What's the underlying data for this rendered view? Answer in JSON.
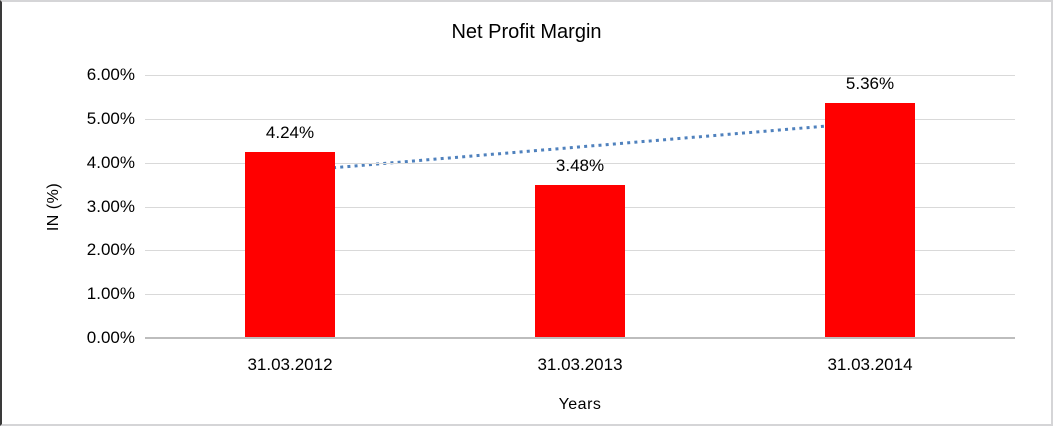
{
  "chart": {
    "title": "Net Profit Margin",
    "y_axis_title": "IN (%)",
    "x_axis_title": "Years"
  },
  "chart_data": {
    "type": "bar",
    "title": "Net Profit Margin",
    "xlabel": "Years",
    "ylabel": "IN (%)",
    "categories": [
      "31.03.2012",
      "31.03.2013",
      "31.03.2014"
    ],
    "values": [
      4.24,
      3.48,
      5.36
    ],
    "value_labels": [
      "4.24%",
      "3.48%",
      "5.36%"
    ],
    "y_ticks": [
      "0.00%",
      "1.00%",
      "2.00%",
      "3.00%",
      "4.00%",
      "5.00%",
      "6.00%"
    ],
    "ylim": [
      0,
      6
    ],
    "grid": true,
    "legend": "none",
    "bar_color": "#ff0000",
    "gridline_color": "#d9d9d9",
    "axis_line_color": "#bdbdbd",
    "trendline": {
      "type": "linear",
      "style": "dotted",
      "color": "#4f81bd",
      "start_value": 3.8,
      "end_value": 4.92
    }
  }
}
